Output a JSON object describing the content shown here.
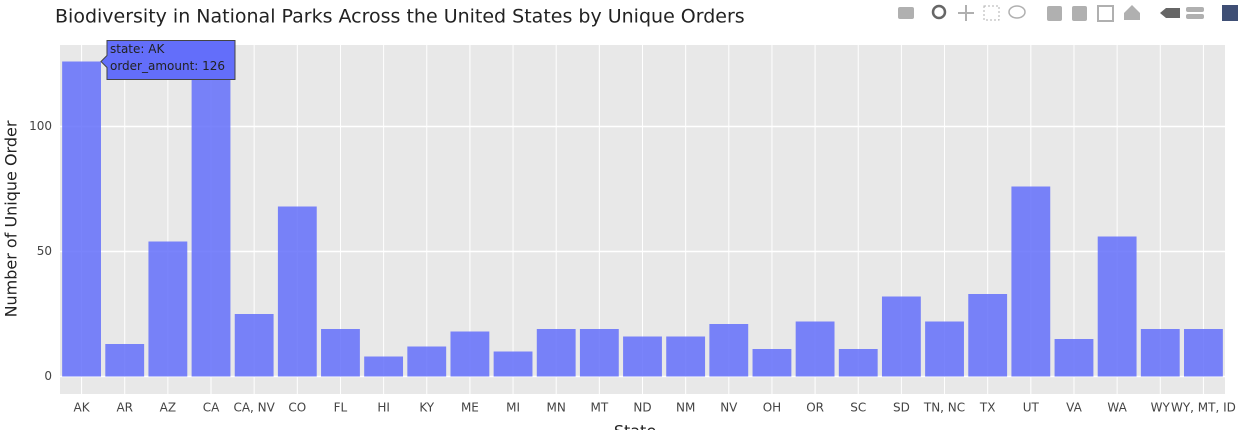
{
  "chart_data": {
    "type": "bar",
    "title": "Biodiversity in National Parks Across the United States by Unique Orders",
    "x_label": "State",
    "y_label": "Number of Unique Order",
    "categories": [
      "AK",
      "AR",
      "AZ",
      "CA",
      "CA, NV",
      "CO",
      "FL",
      "HI",
      "KY",
      "ME",
      "MI",
      "MN",
      "MT",
      "ND",
      "NM",
      "NV",
      "OH",
      "OR",
      "SC",
      "SD",
      "TN, NC",
      "TX",
      "UT",
      "VA",
      "WA",
      "WY",
      "WY, MT, ID"
    ],
    "values": [
      126,
      13,
      54,
      126,
      25,
      68,
      19,
      8,
      12,
      18,
      10,
      19,
      19,
      16,
      16,
      21,
      11,
      22,
      11,
      32,
      22,
      33,
      76,
      15,
      56,
      19,
      19
    ],
    "color": "#636efa",
    "ylim": [
      -7,
      132.6
    ],
    "yticks": [
      0,
      50,
      100
    ],
    "grid": true,
    "tooltip": [
      "state: AK",
      "order_amount: 126"
    ]
  }
}
